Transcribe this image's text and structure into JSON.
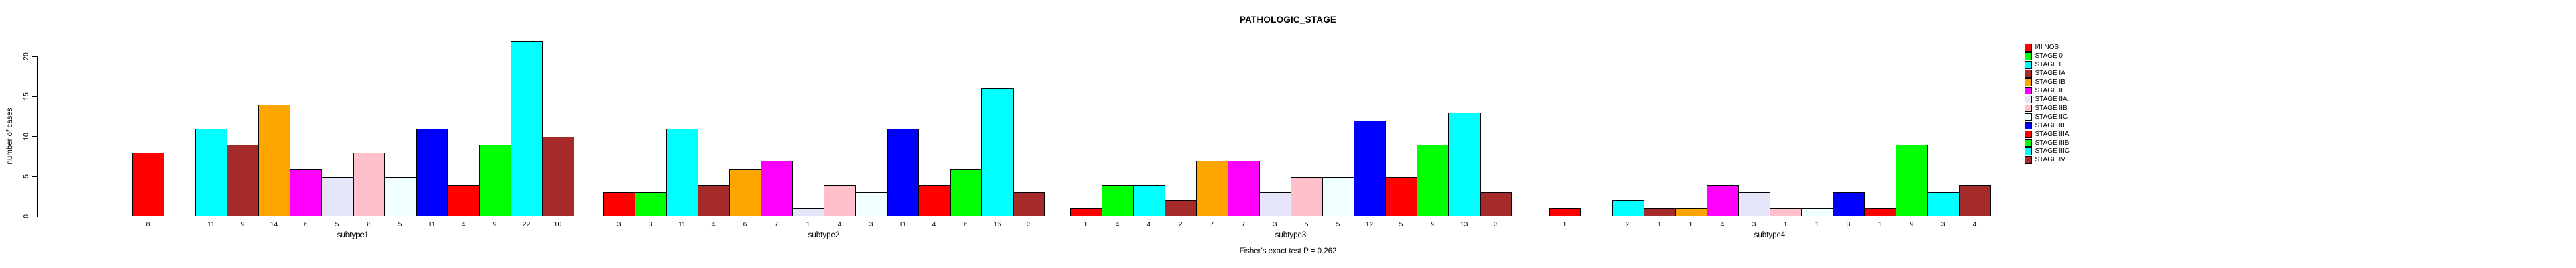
{
  "title": "PATHOLOGIC_STAGE",
  "footer": "Fisher's exact test P = 0.262",
  "chart_data": {
    "type": "bar",
    "title": "PATHOLOGIC_STAGE",
    "ylabel": "number of cases",
    "xlabel": "",
    "ylim": [
      0,
      20
    ],
    "yticks": [
      0,
      5,
      10,
      15,
      20
    ],
    "grid": false,
    "legend_position": "right",
    "bar_value_labels": "below bars; categories with value 0 have no bar and no label",
    "categories": [
      "I/II NOS",
      "STAGE 0",
      "STAGE I",
      "STAGE IA",
      "STAGE IB",
      "STAGE II",
      "STAGE IIA",
      "STAGE IIB",
      "STAGE IIC",
      "STAGE III",
      "STAGE IIIA",
      "STAGE IIIB",
      "STAGE IIIC",
      "STAGE IV"
    ],
    "colors": [
      "#FF0000",
      "#00FF00",
      "#00FFFF",
      "#A52A2A",
      "#FFA500",
      "#FF00FF",
      "#E6E6FA",
      "#FFC0CB",
      "#F0FFFF",
      "#0000FF",
      "#FF0000",
      "#00FF00",
      "#00FFFF",
      "#A52A2A"
    ],
    "panels": [
      {
        "label": "subtype1",
        "values": [
          8,
          0,
          11,
          9,
          14,
          6,
          5,
          8,
          5,
          11,
          4,
          9,
          22,
          10
        ]
      },
      {
        "label": "subtype2",
        "values": [
          3,
          3,
          11,
          4,
          6,
          7,
          1,
          4,
          3,
          11,
          4,
          6,
          16,
          3
        ]
      },
      {
        "label": "subtype3",
        "values": [
          1,
          4,
          4,
          2,
          7,
          7,
          3,
          5,
          5,
          12,
          5,
          9,
          13,
          3
        ]
      },
      {
        "label": "subtype4",
        "values": [
          1,
          0,
          2,
          1,
          1,
          4,
          3,
          1,
          1,
          3,
          1,
          9,
          3,
          4
        ]
      }
    ],
    "annotation": "Fisher's exact test P = 0.262"
  }
}
